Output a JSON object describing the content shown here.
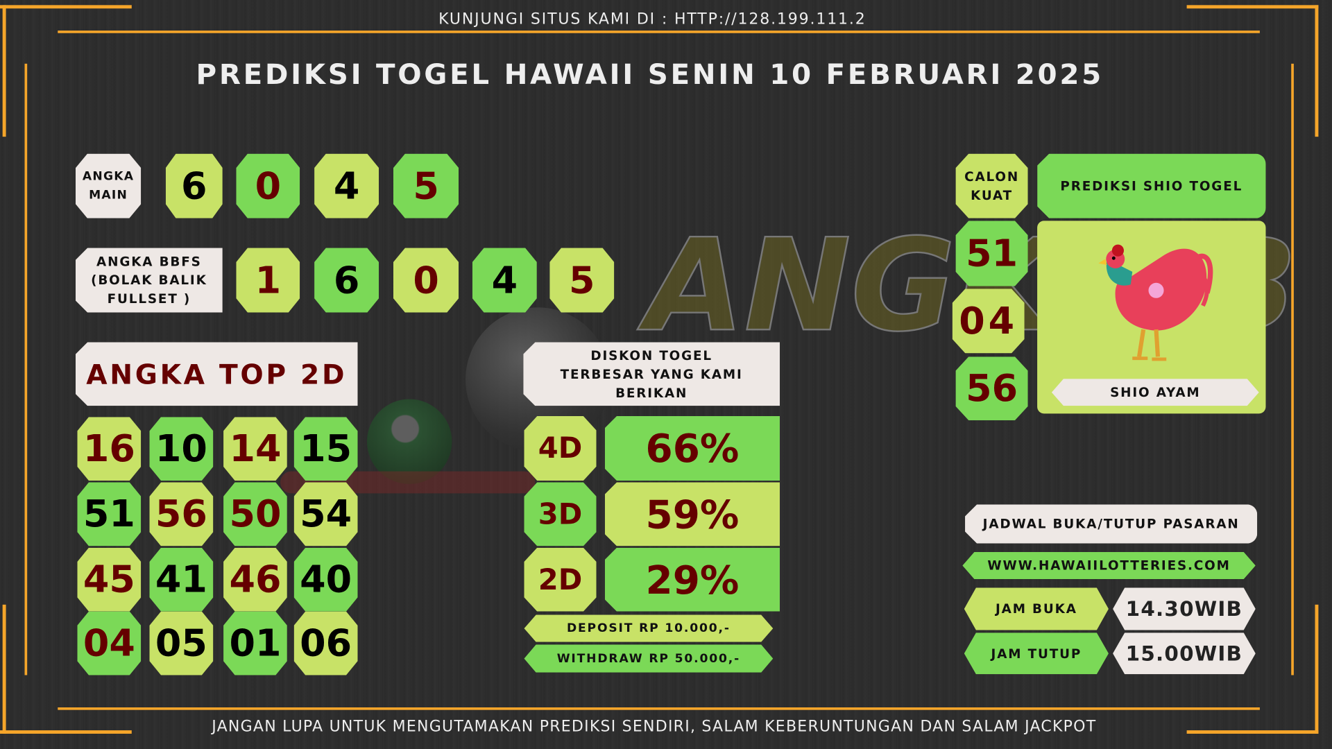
{
  "header": {
    "site": "KUNJUNGI SITUS KAMI DI : HTTP://128.199.111.2",
    "title": "PREDIKSI TOGEL HAWAII SENIN 10 FEBRUARI 2025"
  },
  "footer": "JANGAN LUPA UNTUK MENGUTAMAKAN PREDIKSI SENDIRI, SALAM KEBERUNTUNGAN DAN SALAM JACKPOT",
  "watermark": "ANGKAIB",
  "angka_main": {
    "label": "ANGKA MAIN",
    "digits": [
      "6",
      "0",
      "4",
      "5"
    ]
  },
  "bbfs": {
    "label": "ANGKA BBFS (BOLAK BALIK FULLSET )",
    "digits": [
      "1",
      "6",
      "0",
      "4",
      "5"
    ]
  },
  "top2d": {
    "label": "ANGKA TOP 2D",
    "rows": [
      [
        "16",
        "10",
        "14",
        "15"
      ],
      [
        "51",
        "56",
        "50",
        "54"
      ],
      [
        "45",
        "41",
        "46",
        "40"
      ],
      [
        "04",
        "05",
        "01",
        "06"
      ]
    ]
  },
  "diskon": {
    "label": "DISKON TOGEL TERBESAR YANG KAMI BERIKAN",
    "rows": [
      {
        "type": "4D",
        "value": "66%"
      },
      {
        "type": "3D",
        "value": "59%"
      },
      {
        "type": "2D",
        "value": "29%"
      }
    ],
    "deposit": "DEPOSIT RP 10.000,-",
    "withdraw": "WITHDRAW RP 50.000,-"
  },
  "calon": {
    "label": "CALON KUAT",
    "numbers": [
      "51",
      "04",
      "56"
    ]
  },
  "shio": {
    "title": "PREDIKSI SHIO TOGEL",
    "name": "SHIO AYAM",
    "icon": "rooster-icon"
  },
  "jadwal": {
    "title": "JADWAL BUKA/TUTUP PASARAN",
    "website": "WWW.HAWAIILOTTERIES.COM",
    "buka_label": "JAM BUKA",
    "buka": "14.30WIB",
    "tutup_label": "JAM TUTUP",
    "tutup": "15.00WIB"
  },
  "colors": {
    "frame": "#f5a52a",
    "light_green": "#c8e267",
    "green": "#7bd957",
    "dark_red": "#650000",
    "off_white": "#eee8e5"
  }
}
